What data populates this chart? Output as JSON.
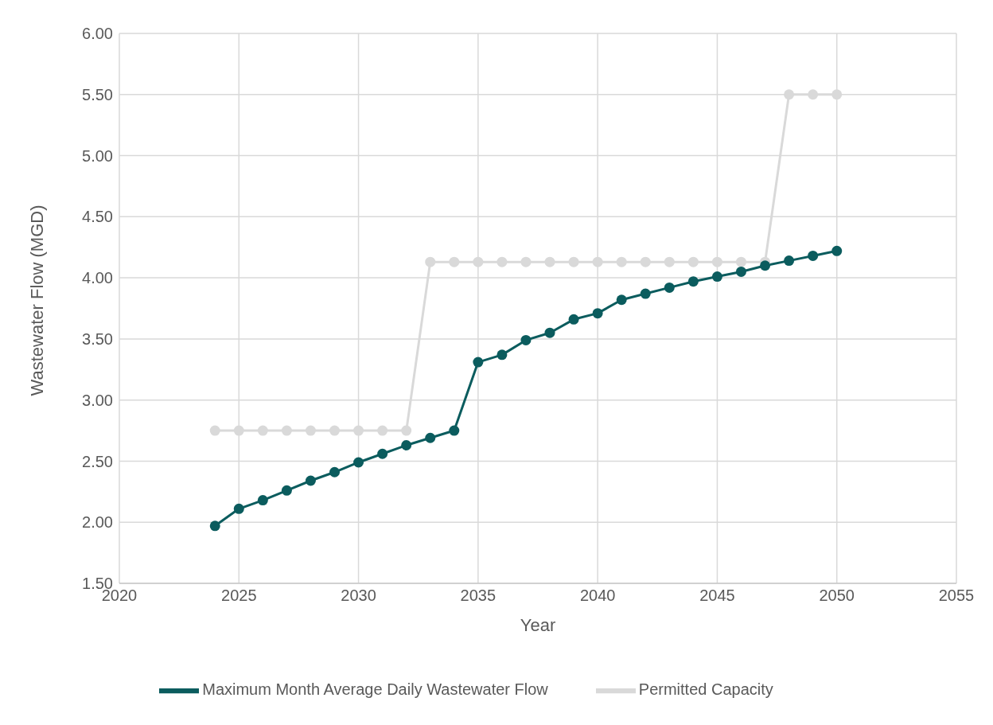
{
  "chart_data": {
    "type": "line",
    "xlabel": "Year",
    "ylabel": "Wastewater Flow (MGD)",
    "x": [
      2024,
      2025,
      2026,
      2027,
      2028,
      2029,
      2030,
      2031,
      2032,
      2033,
      2034,
      2035,
      2036,
      2037,
      2038,
      2039,
      2040,
      2041,
      2042,
      2043,
      2044,
      2045,
      2046,
      2047,
      2048,
      2049,
      2050
    ],
    "series": [
      {
        "name": "Maximum Month Average Daily Wastewater Flow",
        "color": "#0b5c5e",
        "values": [
          1.97,
          2.11,
          2.18,
          2.26,
          2.34,
          2.41,
          2.49,
          2.56,
          2.63,
          2.69,
          2.75,
          3.31,
          3.37,
          3.49,
          3.55,
          3.66,
          3.71,
          3.82,
          3.87,
          3.92,
          3.97,
          4.01,
          4.05,
          4.1,
          4.14,
          4.18,
          4.22
        ]
      },
      {
        "name": "Permitted Capacity",
        "color": "#d9d9d9",
        "values": [
          2.75,
          2.75,
          2.75,
          2.75,
          2.75,
          2.75,
          2.75,
          2.75,
          2.75,
          4.13,
          4.13,
          4.13,
          4.13,
          4.13,
          4.13,
          4.13,
          4.13,
          4.13,
          4.13,
          4.13,
          4.13,
          4.13,
          4.13,
          4.13,
          5.5,
          5.5,
          5.5
        ]
      }
    ],
    "xlim": [
      2020,
      2055
    ],
    "xticks": [
      2020,
      2025,
      2030,
      2035,
      2040,
      2045,
      2050,
      2055
    ],
    "ylim": [
      1.5,
      6
    ],
    "yticks": [
      {
        "value": 1.5,
        "label": "1.50"
      },
      {
        "value": 2,
        "label": "2.00"
      },
      {
        "value": 2.5,
        "label": "2.50"
      },
      {
        "value": 3,
        "label": "3.00"
      },
      {
        "value": 3.5,
        "label": "3.50"
      },
      {
        "value": 4,
        "label": "4.00"
      },
      {
        "value": 4.5,
        "label": "4.50"
      },
      {
        "value": 5,
        "label": "5.00"
      },
      {
        "value": 5.5,
        "label": "5.50"
      },
      {
        "value": 6,
        "label": "6.00"
      }
    ],
    "grid": true,
    "legend": "bottom",
    "marker": "circle",
    "line_style": "solid"
  }
}
